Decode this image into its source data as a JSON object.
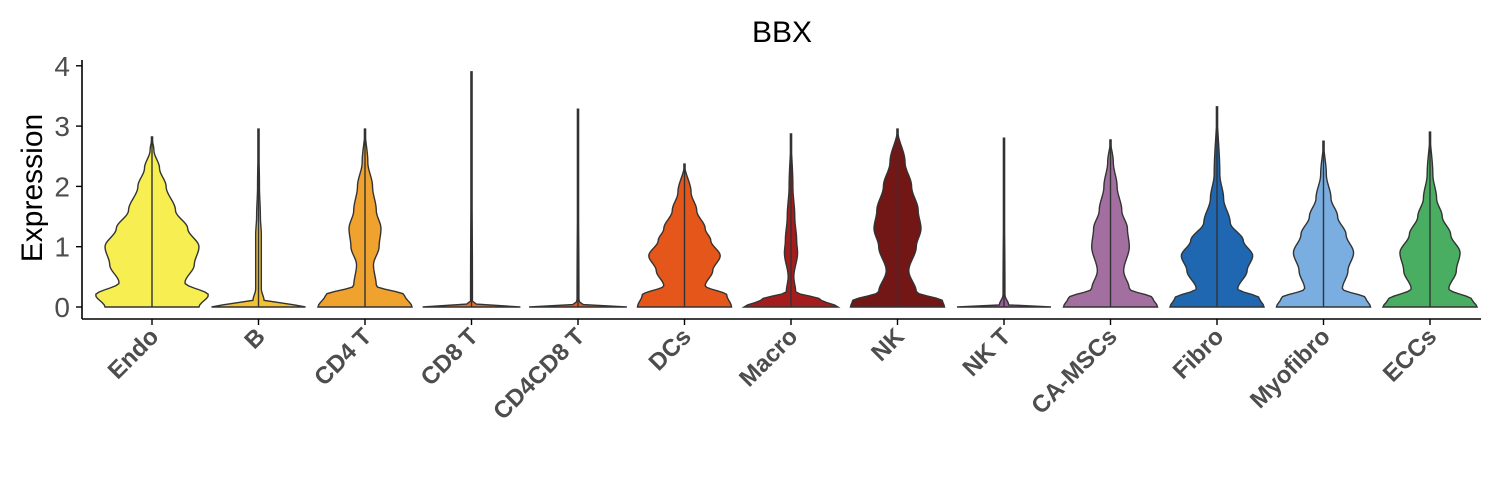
{
  "chart_data": {
    "type": "violin",
    "title": "BBX",
    "xlabel": "",
    "ylabel": "Expression",
    "ylim": [
      0,
      4
    ],
    "yticks": [
      "0",
      "1",
      "2",
      "3",
      "4"
    ],
    "categories": [
      "Endo",
      "B",
      "CD4 T",
      "CD8 T",
      "CD4CD8 T",
      "DCs",
      "Macro",
      "NK",
      "NK T",
      "CA-MSCs",
      "Fibro",
      "Myofibro",
      "ECCs"
    ],
    "colors": [
      "#f7ef52",
      "#f2c233",
      "#f0a22e",
      "#e8702b",
      "#e55a1f",
      "#e4561a",
      "#a51c1c",
      "#731616",
      "#9c5a9e",
      "#a36fa1",
      "#1f67b0",
      "#7aaee0",
      "#4aae62"
    ],
    "max_values": [
      2.82,
      2.95,
      2.95,
      3.9,
      3.28,
      2.37,
      2.87,
      2.95,
      2.8,
      2.77,
      3.32,
      2.75,
      2.9
    ],
    "profiles": [
      [
        [
          0,
          0.5
        ],
        [
          0.2,
          0.6
        ],
        [
          0.4,
          0.35
        ],
        [
          0.7,
          0.45
        ],
        [
          1.0,
          0.5
        ],
        [
          1.3,
          0.38
        ],
        [
          1.6,
          0.25
        ],
        [
          2.0,
          0.15
        ],
        [
          2.3,
          0.08
        ],
        [
          2.6,
          0.02
        ],
        [
          2.82,
          0
        ]
      ],
      [
        [
          0,
          0.5
        ],
        [
          0.05,
          0.35
        ],
        [
          0.1,
          0.06
        ],
        [
          0.3,
          0.03
        ],
        [
          0.8,
          0.03
        ],
        [
          1.2,
          0.03
        ],
        [
          1.5,
          0.02
        ],
        [
          2.0,
          0.01
        ],
        [
          2.95,
          0
        ]
      ],
      [
        [
          0,
          0.5
        ],
        [
          0.2,
          0.42
        ],
        [
          0.35,
          0.12
        ],
        [
          0.7,
          0.09
        ],
        [
          1.0,
          0.15
        ],
        [
          1.3,
          0.17
        ],
        [
          1.6,
          0.12
        ],
        [
          2.0,
          0.08
        ],
        [
          2.4,
          0.03
        ],
        [
          2.95,
          0
        ]
      ],
      [
        [
          0,
          0.52
        ],
        [
          0.03,
          0.06
        ],
        [
          0.1,
          0.01
        ],
        [
          3.9,
          0
        ]
      ],
      [
        [
          0,
          0.52
        ],
        [
          0.03,
          0.06
        ],
        [
          0.1,
          0.01
        ],
        [
          3.28,
          0
        ]
      ],
      [
        [
          0,
          0.5
        ],
        [
          0.2,
          0.45
        ],
        [
          0.35,
          0.22
        ],
        [
          0.6,
          0.3
        ],
        [
          0.85,
          0.38
        ],
        [
          1.1,
          0.28
        ],
        [
          1.3,
          0.22
        ],
        [
          1.6,
          0.13
        ],
        [
          1.9,
          0.07
        ],
        [
          2.37,
          0
        ]
      ],
      [
        [
          0,
          0.5
        ],
        [
          0.12,
          0.32
        ],
        [
          0.25,
          0.05
        ],
        [
          0.5,
          0.03
        ],
        [
          0.9,
          0.07
        ],
        [
          1.1,
          0.06
        ],
        [
          1.5,
          0.04
        ],
        [
          2.0,
          0.02
        ],
        [
          2.87,
          0
        ]
      ],
      [
        [
          0,
          0.5
        ],
        [
          0.1,
          0.48
        ],
        [
          0.25,
          0.2
        ],
        [
          0.6,
          0.12
        ],
        [
          1.0,
          0.2
        ],
        [
          1.3,
          0.25
        ],
        [
          1.6,
          0.22
        ],
        [
          2.0,
          0.15
        ],
        [
          2.4,
          0.08
        ],
        [
          2.95,
          0
        ]
      ],
      [
        [
          0,
          0.5
        ],
        [
          0.03,
          0.05
        ],
        [
          0.2,
          0.01
        ],
        [
          2.8,
          0
        ]
      ],
      [
        [
          0,
          0.5
        ],
        [
          0.15,
          0.45
        ],
        [
          0.3,
          0.2
        ],
        [
          0.6,
          0.14
        ],
        [
          1.0,
          0.2
        ],
        [
          1.3,
          0.18
        ],
        [
          1.6,
          0.12
        ],
        [
          2.0,
          0.07
        ],
        [
          2.4,
          0.03
        ],
        [
          2.77,
          0
        ]
      ],
      [
        [
          0,
          0.5
        ],
        [
          0.15,
          0.45
        ],
        [
          0.3,
          0.22
        ],
        [
          0.6,
          0.32
        ],
        [
          0.85,
          0.38
        ],
        [
          1.1,
          0.28
        ],
        [
          1.4,
          0.14
        ],
        [
          1.8,
          0.07
        ],
        [
          2.2,
          0.03
        ],
        [
          3.32,
          0
        ]
      ],
      [
        [
          0,
          0.5
        ],
        [
          0.15,
          0.45
        ],
        [
          0.3,
          0.2
        ],
        [
          0.6,
          0.26
        ],
        [
          0.9,
          0.32
        ],
        [
          1.2,
          0.24
        ],
        [
          1.5,
          0.15
        ],
        [
          1.8,
          0.08
        ],
        [
          2.2,
          0.03
        ],
        [
          2.75,
          0
        ]
      ],
      [
        [
          0,
          0.5
        ],
        [
          0.12,
          0.45
        ],
        [
          0.3,
          0.2
        ],
        [
          0.6,
          0.28
        ],
        [
          0.9,
          0.32
        ],
        [
          1.2,
          0.22
        ],
        [
          1.5,
          0.13
        ],
        [
          1.8,
          0.07
        ],
        [
          2.2,
          0.03
        ],
        [
          2.9,
          0
        ]
      ]
    ]
  }
}
